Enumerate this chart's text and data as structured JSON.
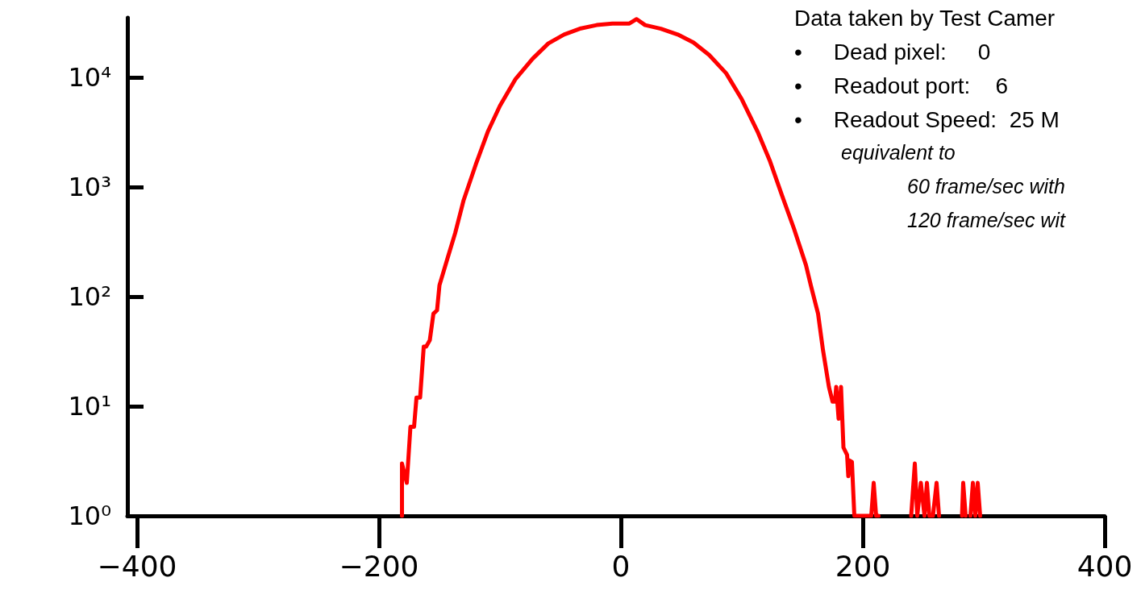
{
  "chart_data": {
    "type": "line",
    "xlim": [
      -408,
      400
    ],
    "ylim": [
      1,
      35000
    ],
    "log": "y",
    "grid": false,
    "marker": "none",
    "line_style": "solid",
    "xticks": [
      {
        "value": -400,
        "label": "−400"
      },
      {
        "value": -200,
        "label": "−200"
      },
      0,
      200,
      400
    ],
    "yticks": [
      {
        "value": 1,
        "label": "10⁰"
      },
      {
        "value": 10,
        "label": "10¹"
      },
      {
        "value": 100,
        "label": "10²"
      },
      {
        "value": 1000,
        "label": "10³"
      },
      {
        "value": 10000,
        "label": "10⁴"
      }
    ],
    "annotations": [
      "Data taken by Test Camer",
      "•     Dead pixel:     0",
      "•     Readout port:    6",
      "•     Readout Speed:  25 M",
      "equivalent to",
      "60 frame/sec with",
      "120 frame/sec wit"
    ],
    "series": [
      {
        "color": "#ff0000",
        "x": [
          -181,
          -181,
          -177,
          -174,
          -171,
          -169,
          -166,
          -163,
          -161,
          -158,
          -155,
          -152,
          -150,
          -143,
          -137,
          -130,
          -120,
          -110,
          -100,
          -87,
          -73,
          -60,
          -47,
          -33,
          -20,
          -7,
          7,
          13,
          20,
          33,
          47,
          60,
          73,
          87,
          100,
          113,
          123,
          133,
          143,
          153,
          157,
          163,
          167,
          172,
          175,
          177,
          178,
          180,
          182,
          184,
          187,
          188,
          189,
          191,
          193,
          195,
          200,
          205,
          207,
          209,
          211,
          213,
          null,
          240,
          243,
          245,
          248,
          251,
          253,
          255,
          258,
          261,
          263,
          null,
          282,
          283,
          285,
          null,
          289,
          291,
          293,
          295,
          297
        ],
        "values": [
          1,
          3,
          2,
          6.5,
          6.5,
          12,
          12,
          35,
          35,
          40,
          70,
          75,
          127,
          230,
          380,
          760,
          1600,
          3200,
          5500,
          9700,
          14800,
          20400,
          24600,
          28000,
          30000,
          31000,
          31000,
          34000,
          30000,
          27800,
          24600,
          20800,
          16000,
          10900,
          6300,
          3200,
          1750,
          850,
          420,
          194,
          127,
          70,
          33,
          15,
          11,
          11,
          15,
          7.7,
          15,
          4.2,
          3.6,
          2.3,
          3.2,
          3.1,
          1,
          1,
          1,
          1,
          1,
          2,
          1,
          1,
          null,
          1,
          3,
          1,
          2,
          1,
          2,
          1,
          1,
          2,
          1,
          null,
          1,
          2,
          1,
          null,
          1,
          2,
          1,
          2,
          1
        ]
      }
    ]
  }
}
